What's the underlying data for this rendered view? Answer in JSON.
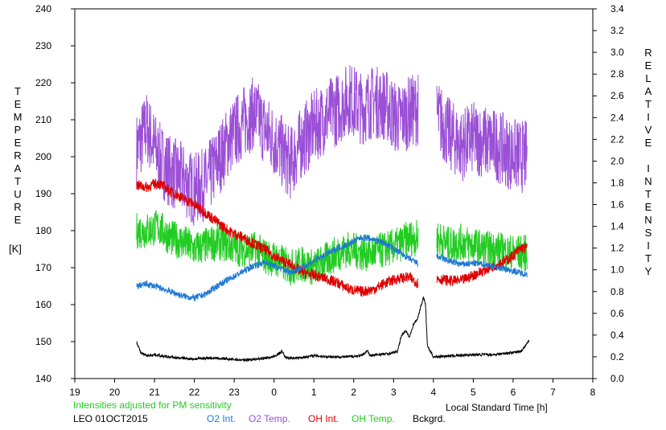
{
  "chart_data": {
    "type": "line",
    "xlabel": "Local Standard Time [h]",
    "ylabel_left": "TEMPERATURE",
    "ylabel_left_unit": "[K]",
    "ylabel_right": "RELATIVE INTENSITY",
    "x_ticks": [
      "19",
      "20",
      "21",
      "22",
      "23",
      "0",
      "1",
      "2",
      "3",
      "4",
      "5",
      "6",
      "7",
      "8"
    ],
    "xlim": [
      19,
      32
    ],
    "ylim_left": [
      140,
      240
    ],
    "y_ticks_left": [
      "140",
      "150",
      "160",
      "170",
      "180",
      "190",
      "200",
      "210",
      "220",
      "230",
      "240"
    ],
    "ylim_right": [
      0.0,
      3.4
    ],
    "y_ticks_right": [
      "0.0",
      "0.2",
      "0.4",
      "0.6",
      "0.8",
      "1.0",
      "1.2",
      "1.4",
      "1.6",
      "1.8",
      "2.0",
      "2.2",
      "2.4",
      "2.6",
      "2.8",
      "3.0",
      "3.2",
      "3.4"
    ],
    "note": "Intensities adjusted for PM sensitivity",
    "note_color": "#22cc22",
    "station_date": "LEO 01OCT2015",
    "legend": [
      {
        "label": "O2 Int.",
        "color": "#1e78d2"
      },
      {
        "label": "O2 Temp.",
        "color": "#9b4fd6"
      },
      {
        "label": "OH Int.",
        "color": "#dd0000"
      },
      {
        "label": "OH Temp.",
        "color": "#22cc22"
      },
      {
        "label": "Bckgrd.",
        "color": "#000000"
      }
    ],
    "series": [
      {
        "name": "O2 Temp.",
        "axis": "left",
        "color": "#9b4fd6",
        "x": [
          20.55,
          20.8,
          21.1,
          21.4,
          21.7,
          22.0,
          22.3,
          22.6,
          22.9,
          23.2,
          23.5,
          23.8,
          24.1,
          24.4,
          24.7,
          25.0,
          25.3,
          25.6,
          25.9,
          26.2,
          26.5,
          26.8,
          27.1,
          27.4,
          27.6,
          28.1,
          28.4,
          28.7,
          29.0,
          29.3,
          29.6,
          29.9,
          30.2,
          30.35
        ],
        "y": [
          202,
          208,
          200,
          196,
          194,
          191,
          193,
          199,
          205,
          209,
          212,
          207,
          203,
          198,
          204,
          208,
          211,
          213,
          216,
          213,
          215,
          214,
          210,
          212,
          213,
          211,
          206,
          203,
          205,
          204,
          203,
          201,
          200,
          200
        ],
        "noise": 10,
        "gaps": [
          [
            27.62,
            28.08
          ]
        ]
      },
      {
        "name": "OH Temp.",
        "axis": "left",
        "color": "#22cc22",
        "x": [
          20.55,
          20.8,
          21.1,
          21.4,
          21.7,
          22.0,
          22.3,
          22.6,
          22.9,
          23.2,
          23.5,
          23.8,
          24.1,
          24.4,
          24.7,
          25.0,
          25.3,
          25.6,
          25.9,
          26.2,
          26.5,
          26.8,
          27.1,
          27.4,
          27.6,
          28.1,
          28.4,
          28.7,
          29.0,
          29.3,
          29.6,
          29.9,
          30.2,
          30.35
        ],
        "y": [
          180,
          180,
          181,
          178,
          177,
          175,
          176,
          177,
          176,
          175,
          175,
          173,
          172,
          170,
          171,
          170,
          172,
          174,
          175,
          174,
          174,
          175,
          176,
          178,
          178,
          178,
          176,
          177,
          176,
          175,
          175,
          174,
          174,
          174
        ],
        "noise": 5,
        "gaps": [
          [
            27.62,
            28.08
          ]
        ]
      },
      {
        "name": "OH Int.",
        "axis": "right",
        "color": "#dd0000",
        "x": [
          20.55,
          20.8,
          21.1,
          21.4,
          21.7,
          22.0,
          22.3,
          22.6,
          22.9,
          23.2,
          23.5,
          23.8,
          24.1,
          24.4,
          24.7,
          25.0,
          25.3,
          25.6,
          25.9,
          26.2,
          26.5,
          26.8,
          27.1,
          27.4,
          27.6,
          28.1,
          28.4,
          28.7,
          29.0,
          29.3,
          29.6,
          29.9,
          30.2,
          30.35
        ],
        "y": [
          1.78,
          1.76,
          1.8,
          1.72,
          1.66,
          1.6,
          1.52,
          1.43,
          1.35,
          1.3,
          1.24,
          1.18,
          1.1,
          1.05,
          0.98,
          0.95,
          0.92,
          0.88,
          0.82,
          0.8,
          0.82,
          0.88,
          0.92,
          0.93,
          0.88,
          0.92,
          0.9,
          0.9,
          0.95,
          1.0,
          1.05,
          1.1,
          1.2,
          1.2
        ],
        "noise": 0.05,
        "gaps": [
          [
            27.62,
            28.08
          ]
        ]
      },
      {
        "name": "O2 Int.",
        "axis": "right",
        "color": "#1e78d2",
        "x": [
          20.55,
          20.8,
          21.1,
          21.4,
          21.7,
          22.0,
          22.3,
          22.6,
          22.9,
          23.2,
          23.5,
          23.8,
          24.1,
          24.4,
          24.7,
          25.0,
          25.3,
          25.6,
          25.9,
          26.2,
          26.5,
          26.8,
          27.1,
          27.4,
          27.6,
          28.1,
          28.4,
          28.7,
          29.0,
          29.3,
          29.6,
          29.9,
          30.2,
          30.35
        ],
        "y": [
          0.85,
          0.87,
          0.84,
          0.8,
          0.76,
          0.74,
          0.78,
          0.86,
          0.92,
          0.98,
          1.04,
          1.07,
          1.02,
          0.98,
          1.02,
          1.08,
          1.14,
          1.2,
          1.24,
          1.3,
          1.28,
          1.24,
          1.17,
          1.1,
          1.06,
          1.12,
          1.08,
          1.05,
          1.06,
          1.05,
          1.02,
          1.0,
          0.97,
          0.96
        ],
        "noise": 0.03,
        "gaps": [
          [
            27.62,
            28.08
          ]
        ]
      },
      {
        "name": "Bckgrd.",
        "axis": "right",
        "color": "#000000",
        "x": [
          20.55,
          20.65,
          20.8,
          21.0,
          21.3,
          21.6,
          22.0,
          22.4,
          22.8,
          23.2,
          23.6,
          24.0,
          24.2,
          24.3,
          24.6,
          25.0,
          25.4,
          25.8,
          26.2,
          26.35,
          26.4,
          26.6,
          26.9,
          27.1,
          27.2,
          27.3,
          27.4,
          27.5,
          27.6,
          27.75,
          27.8,
          27.85,
          28.0,
          28.5,
          29.0,
          29.5,
          30.0,
          30.2,
          30.4
        ],
        "y": [
          0.34,
          0.24,
          0.21,
          0.22,
          0.2,
          0.19,
          0.18,
          0.19,
          0.18,
          0.17,
          0.18,
          0.2,
          0.25,
          0.19,
          0.19,
          0.21,
          0.2,
          0.2,
          0.21,
          0.26,
          0.21,
          0.22,
          0.23,
          0.25,
          0.4,
          0.44,
          0.38,
          0.5,
          0.55,
          0.75,
          0.68,
          0.3,
          0.2,
          0.21,
          0.22,
          0.22,
          0.24,
          0.25,
          0.35
        ],
        "noise": 0.012,
        "gaps": []
      }
    ]
  }
}
